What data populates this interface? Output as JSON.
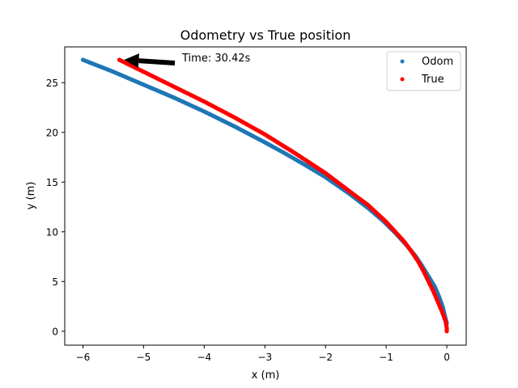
{
  "chart_data": {
    "type": "scatter",
    "title": "Odometry vs True position",
    "xlabel": "x (m)",
    "ylabel": "y (m)",
    "xlim": [
      -6.3,
      0.32
    ],
    "ylim": [
      -1.4,
      28.6
    ],
    "xticks": [
      -6,
      -5,
      -4,
      -3,
      -2,
      -1,
      0
    ],
    "xtick_labels": [
      "−6",
      "−5",
      "−4",
      "−3",
      "−2",
      "−1",
      "0"
    ],
    "yticks": [
      0,
      5,
      10,
      15,
      20,
      25
    ],
    "ytick_labels": [
      "0",
      "5",
      "10",
      "15",
      "20",
      "25"
    ],
    "grid": false,
    "legend": "top-right",
    "series": [
      {
        "name": "Odom",
        "color": "#1f77b4",
        "points": [
          [
            0.0,
            0.8
          ],
          [
            -0.03,
            1.5
          ],
          [
            -0.07,
            2.5
          ],
          [
            -0.13,
            3.5
          ],
          [
            -0.2,
            4.5
          ],
          [
            -0.3,
            5.5
          ],
          [
            -0.4,
            6.5
          ],
          [
            -0.52,
            7.6
          ],
          [
            -0.67,
            8.7
          ],
          [
            -0.85,
            9.9
          ],
          [
            -1.05,
            11.1
          ],
          [
            -1.3,
            12.4
          ],
          [
            -1.6,
            13.8
          ],
          [
            -2.0,
            15.5
          ],
          [
            -2.3,
            16.6
          ],
          [
            -2.7,
            18.0
          ],
          [
            -3.0,
            19.0
          ],
          [
            -3.5,
            20.6
          ],
          [
            -4.0,
            22.1
          ],
          [
            -4.5,
            23.5
          ],
          [
            -5.0,
            24.8
          ],
          [
            -5.5,
            26.1
          ],
          [
            -6.0,
            27.3
          ]
        ]
      },
      {
        "name": "True",
        "color": "#ff0000",
        "points": [
          [
            0.0,
            0.0
          ],
          [
            0.0,
            0.3
          ],
          [
            -0.02,
            1.0
          ],
          [
            -0.08,
            2.0
          ],
          [
            -0.15,
            3.0
          ],
          [
            -0.22,
            4.0
          ],
          [
            -0.3,
            5.0
          ],
          [
            -0.38,
            6.0
          ],
          [
            -0.47,
            7.0
          ],
          [
            -0.58,
            8.0
          ],
          [
            -0.7,
            9.0
          ],
          [
            -0.85,
            10.0
          ],
          [
            -1.0,
            11.0
          ],
          [
            -1.3,
            12.7
          ],
          [
            -1.5,
            13.6
          ],
          [
            -2.0,
            15.9
          ],
          [
            -2.5,
            17.9
          ],
          [
            -3.0,
            19.8
          ],
          [
            -3.5,
            21.5
          ],
          [
            -4.0,
            23.1
          ],
          [
            -4.5,
            24.6
          ],
          [
            -5.0,
            26.1
          ],
          [
            -5.4,
            27.3
          ]
        ]
      }
    ],
    "annotation": {
      "text": "Time: 30.42s",
      "target": [
        -5.4,
        27.3
      ]
    }
  }
}
